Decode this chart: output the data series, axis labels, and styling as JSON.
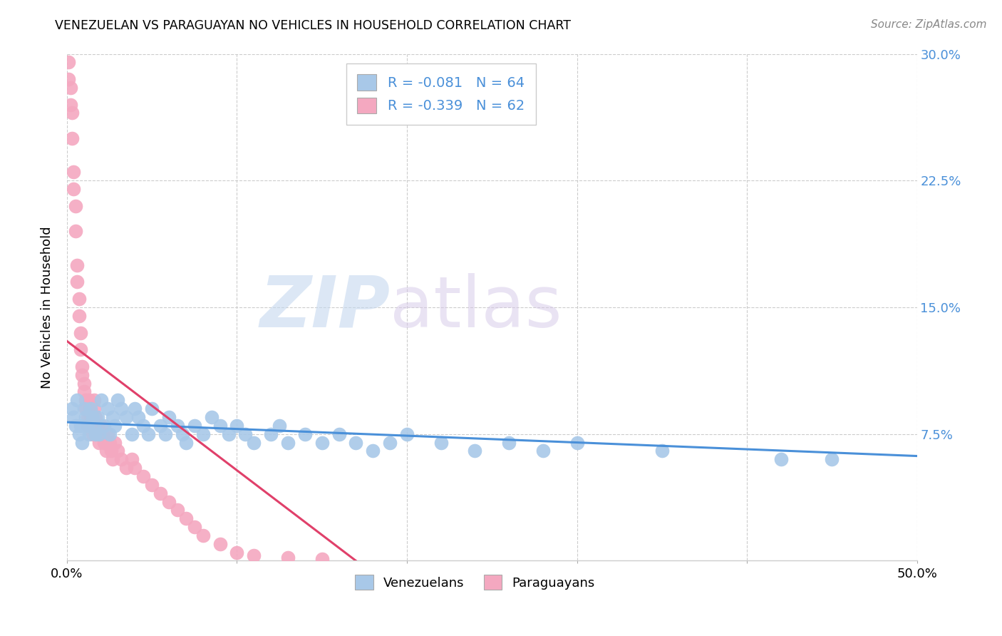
{
  "title": "VENEZUELAN VS PARAGUAYAN NO VEHICLES IN HOUSEHOLD CORRELATION CHART",
  "source": "Source: ZipAtlas.com",
  "ylabel": "No Vehicles in Household",
  "xlim": [
    0.0,
    0.5
  ],
  "ylim": [
    0.0,
    0.3
  ],
  "yticks": [
    0.075,
    0.15,
    0.225,
    0.3
  ],
  "ytick_labels": [
    "7.5%",
    "15.0%",
    "22.5%",
    "30.0%"
  ],
  "xticks": [
    0.0,
    0.1,
    0.2,
    0.3,
    0.4,
    0.5
  ],
  "xtick_labels_show": [
    "0.0%",
    "",
    "",
    "",
    "",
    "50.0%"
  ],
  "venezuelan_R": -0.081,
  "venezuelan_N": 64,
  "paraguayan_R": -0.339,
  "paraguayan_N": 62,
  "venezuelan_color": "#a8c8e8",
  "paraguayan_color": "#f4a8c0",
  "venezuelan_line_color": "#4a90d9",
  "paraguayan_line_color": "#e0406a",
  "right_axis_color": "#4a90d9",
  "watermark_color": "#dce8f5",
  "background_color": "#ffffff",
  "grid_color": "#cccccc",
  "venezuelan_x": [
    0.003,
    0.004,
    0.005,
    0.006,
    0.007,
    0.008,
    0.009,
    0.01,
    0.011,
    0.012,
    0.013,
    0.014,
    0.015,
    0.016,
    0.017,
    0.018,
    0.019,
    0.02,
    0.022,
    0.024,
    0.025,
    0.027,
    0.028,
    0.03,
    0.032,
    0.035,
    0.038,
    0.04,
    0.042,
    0.045,
    0.048,
    0.05,
    0.055,
    0.058,
    0.06,
    0.065,
    0.068,
    0.07,
    0.075,
    0.08,
    0.085,
    0.09,
    0.095,
    0.1,
    0.105,
    0.11,
    0.12,
    0.125,
    0.13,
    0.14,
    0.15,
    0.16,
    0.17,
    0.18,
    0.19,
    0.2,
    0.22,
    0.24,
    0.26,
    0.28,
    0.3,
    0.35,
    0.42,
    0.45
  ],
  "venezuelan_y": [
    0.09,
    0.085,
    0.08,
    0.095,
    0.075,
    0.08,
    0.07,
    0.09,
    0.085,
    0.08,
    0.075,
    0.09,
    0.085,
    0.08,
    0.075,
    0.085,
    0.075,
    0.095,
    0.08,
    0.09,
    0.075,
    0.085,
    0.08,
    0.095,
    0.09,
    0.085,
    0.075,
    0.09,
    0.085,
    0.08,
    0.075,
    0.09,
    0.08,
    0.075,
    0.085,
    0.08,
    0.075,
    0.07,
    0.08,
    0.075,
    0.085,
    0.08,
    0.075,
    0.08,
    0.075,
    0.07,
    0.075,
    0.08,
    0.07,
    0.075,
    0.07,
    0.075,
    0.07,
    0.065,
    0.07,
    0.075,
    0.07,
    0.065,
    0.07,
    0.065,
    0.07,
    0.065,
    0.06,
    0.06
  ],
  "paraguayan_x": [
    0.001,
    0.001,
    0.002,
    0.002,
    0.003,
    0.003,
    0.004,
    0.004,
    0.005,
    0.005,
    0.006,
    0.006,
    0.007,
    0.007,
    0.008,
    0.008,
    0.009,
    0.009,
    0.01,
    0.01,
    0.011,
    0.011,
    0.012,
    0.012,
    0.013,
    0.013,
    0.014,
    0.015,
    0.015,
    0.016,
    0.016,
    0.017,
    0.018,
    0.018,
    0.019,
    0.02,
    0.021,
    0.022,
    0.023,
    0.024,
    0.025,
    0.026,
    0.027,
    0.028,
    0.03,
    0.032,
    0.035,
    0.038,
    0.04,
    0.045,
    0.05,
    0.055,
    0.06,
    0.065,
    0.07,
    0.075,
    0.08,
    0.09,
    0.1,
    0.11,
    0.13,
    0.15
  ],
  "paraguayan_y": [
    0.295,
    0.285,
    0.28,
    0.27,
    0.265,
    0.25,
    0.23,
    0.22,
    0.21,
    0.195,
    0.175,
    0.165,
    0.155,
    0.145,
    0.135,
    0.125,
    0.115,
    0.11,
    0.105,
    0.1,
    0.095,
    0.09,
    0.085,
    0.08,
    0.095,
    0.09,
    0.085,
    0.08,
    0.075,
    0.095,
    0.09,
    0.085,
    0.08,
    0.075,
    0.07,
    0.08,
    0.075,
    0.07,
    0.065,
    0.075,
    0.07,
    0.065,
    0.06,
    0.07,
    0.065,
    0.06,
    0.055,
    0.06,
    0.055,
    0.05,
    0.045,
    0.04,
    0.035,
    0.03,
    0.025,
    0.02,
    0.015,
    0.01,
    0.005,
    0.003,
    0.002,
    0.001
  ],
  "ven_line_x": [
    0.0,
    0.5
  ],
  "ven_line_y": [
    0.082,
    0.062
  ],
  "par_line_x": [
    0.0,
    0.17
  ],
  "par_line_y": [
    0.13,
    0.0
  ]
}
